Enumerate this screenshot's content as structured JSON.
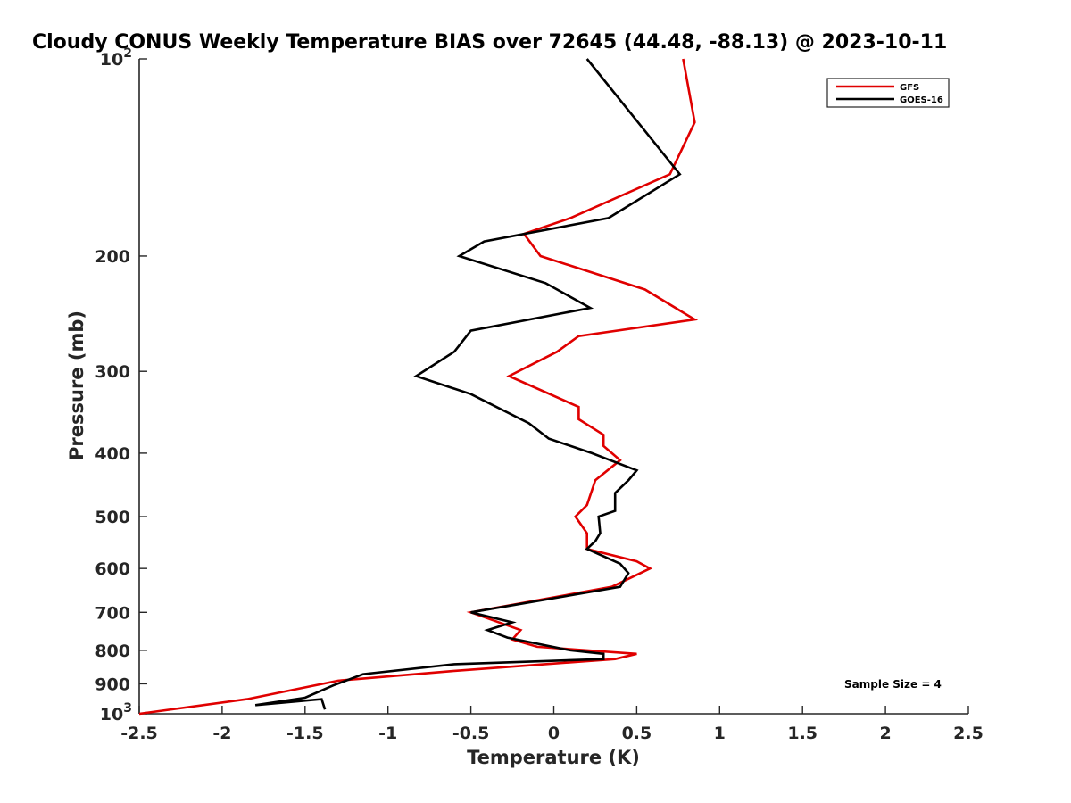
{
  "chart_data": {
    "type": "line",
    "title": "Cloudy CONUS Weekly Temperature BIAS over 72645 (44.48, -88.13) @ 2023-10-11",
    "xlabel": "Temperature (K)",
    "ylabel": "Pressure (mb)",
    "xlim": [
      -2.5,
      2.5
    ],
    "ylim": [
      100,
      1000
    ],
    "y_scale": "log",
    "y_reversed": true,
    "grid": false,
    "legend_position": "top-right",
    "x_ticks": [
      "-2.5",
      "-2",
      "-1.5",
      "-1",
      "-0.5",
      "0",
      "0.5",
      "1",
      "1.5",
      "2",
      "2.5"
    ],
    "y_ticks": [
      {
        "value": 100,
        "base": "10",
        "exp": "2"
      },
      {
        "value": 200,
        "label": "200"
      },
      {
        "value": 300,
        "label": "300"
      },
      {
        "value": 400,
        "label": "400"
      },
      {
        "value": 500,
        "label": "500"
      },
      {
        "value": 600,
        "label": "600"
      },
      {
        "value": 700,
        "label": "700"
      },
      {
        "value": 800,
        "label": "800"
      },
      {
        "value": 900,
        "label": "900"
      },
      {
        "value": 1000,
        "base": "10",
        "exp": "3"
      }
    ],
    "series": [
      {
        "name": "GFS",
        "color": "#e00000",
        "points": [
          [
            0.78,
            100
          ],
          [
            0.85,
            125
          ],
          [
            0.7,
            150
          ],
          [
            0.1,
            175
          ],
          [
            -0.18,
            185
          ],
          [
            -0.08,
            200
          ],
          [
            0.55,
            225
          ],
          [
            0.85,
            250
          ],
          [
            0.15,
            265
          ],
          [
            0.02,
            280
          ],
          [
            -0.27,
            305
          ],
          [
            0.15,
            340
          ],
          [
            0.15,
            355
          ],
          [
            0.3,
            375
          ],
          [
            0.3,
            390
          ],
          [
            0.4,
            410
          ],
          [
            0.25,
            440
          ],
          [
            0.2,
            480
          ],
          [
            0.13,
            500
          ],
          [
            0.2,
            530
          ],
          [
            0.2,
            540
          ],
          [
            0.2,
            560
          ],
          [
            0.5,
            585
          ],
          [
            0.58,
            600
          ],
          [
            0.35,
            640
          ],
          [
            -0.5,
            700
          ],
          [
            -0.2,
            745
          ],
          [
            -0.25,
            770
          ],
          [
            -0.1,
            790
          ],
          [
            0.5,
            810
          ],
          [
            0.37,
            825
          ],
          [
            -0.6,
            860
          ],
          [
            -1.3,
            890
          ],
          [
            -1.85,
            950
          ],
          [
            -2.5,
            1000
          ]
        ]
      },
      {
        "name": "GOES-16",
        "color": "#000000",
        "points": [
          [
            0.2,
            100
          ],
          [
            0.76,
            150
          ],
          [
            0.33,
            175
          ],
          [
            -0.42,
            190
          ],
          [
            -0.57,
            200
          ],
          [
            -0.05,
            220
          ],
          [
            0.22,
            240
          ],
          [
            -0.5,
            260
          ],
          [
            -0.6,
            280
          ],
          [
            -0.83,
            305
          ],
          [
            -0.5,
            325
          ],
          [
            -0.15,
            360
          ],
          [
            -0.03,
            380
          ],
          [
            0.23,
            400
          ],
          [
            0.5,
            425
          ],
          [
            0.45,
            440
          ],
          [
            0.37,
            460
          ],
          [
            0.37,
            490
          ],
          [
            0.27,
            500
          ],
          [
            0.28,
            530
          ],
          [
            0.25,
            545
          ],
          [
            0.2,
            560
          ],
          [
            0.4,
            590
          ],
          [
            0.45,
            610
          ],
          [
            0.4,
            640
          ],
          [
            -0.5,
            700
          ],
          [
            -0.25,
            725
          ],
          [
            -0.4,
            745
          ],
          [
            -0.28,
            765
          ],
          [
            0.1,
            800
          ],
          [
            0.3,
            810
          ],
          [
            0.3,
            825
          ],
          [
            -0.6,
            840
          ],
          [
            -1.15,
            870
          ],
          [
            -1.33,
            905
          ],
          [
            -1.5,
            945
          ],
          [
            -1.8,
            970
          ],
          [
            -1.4,
            950
          ],
          [
            -1.38,
            985
          ]
        ]
      }
    ],
    "annotation": "Sample Size = 4"
  }
}
